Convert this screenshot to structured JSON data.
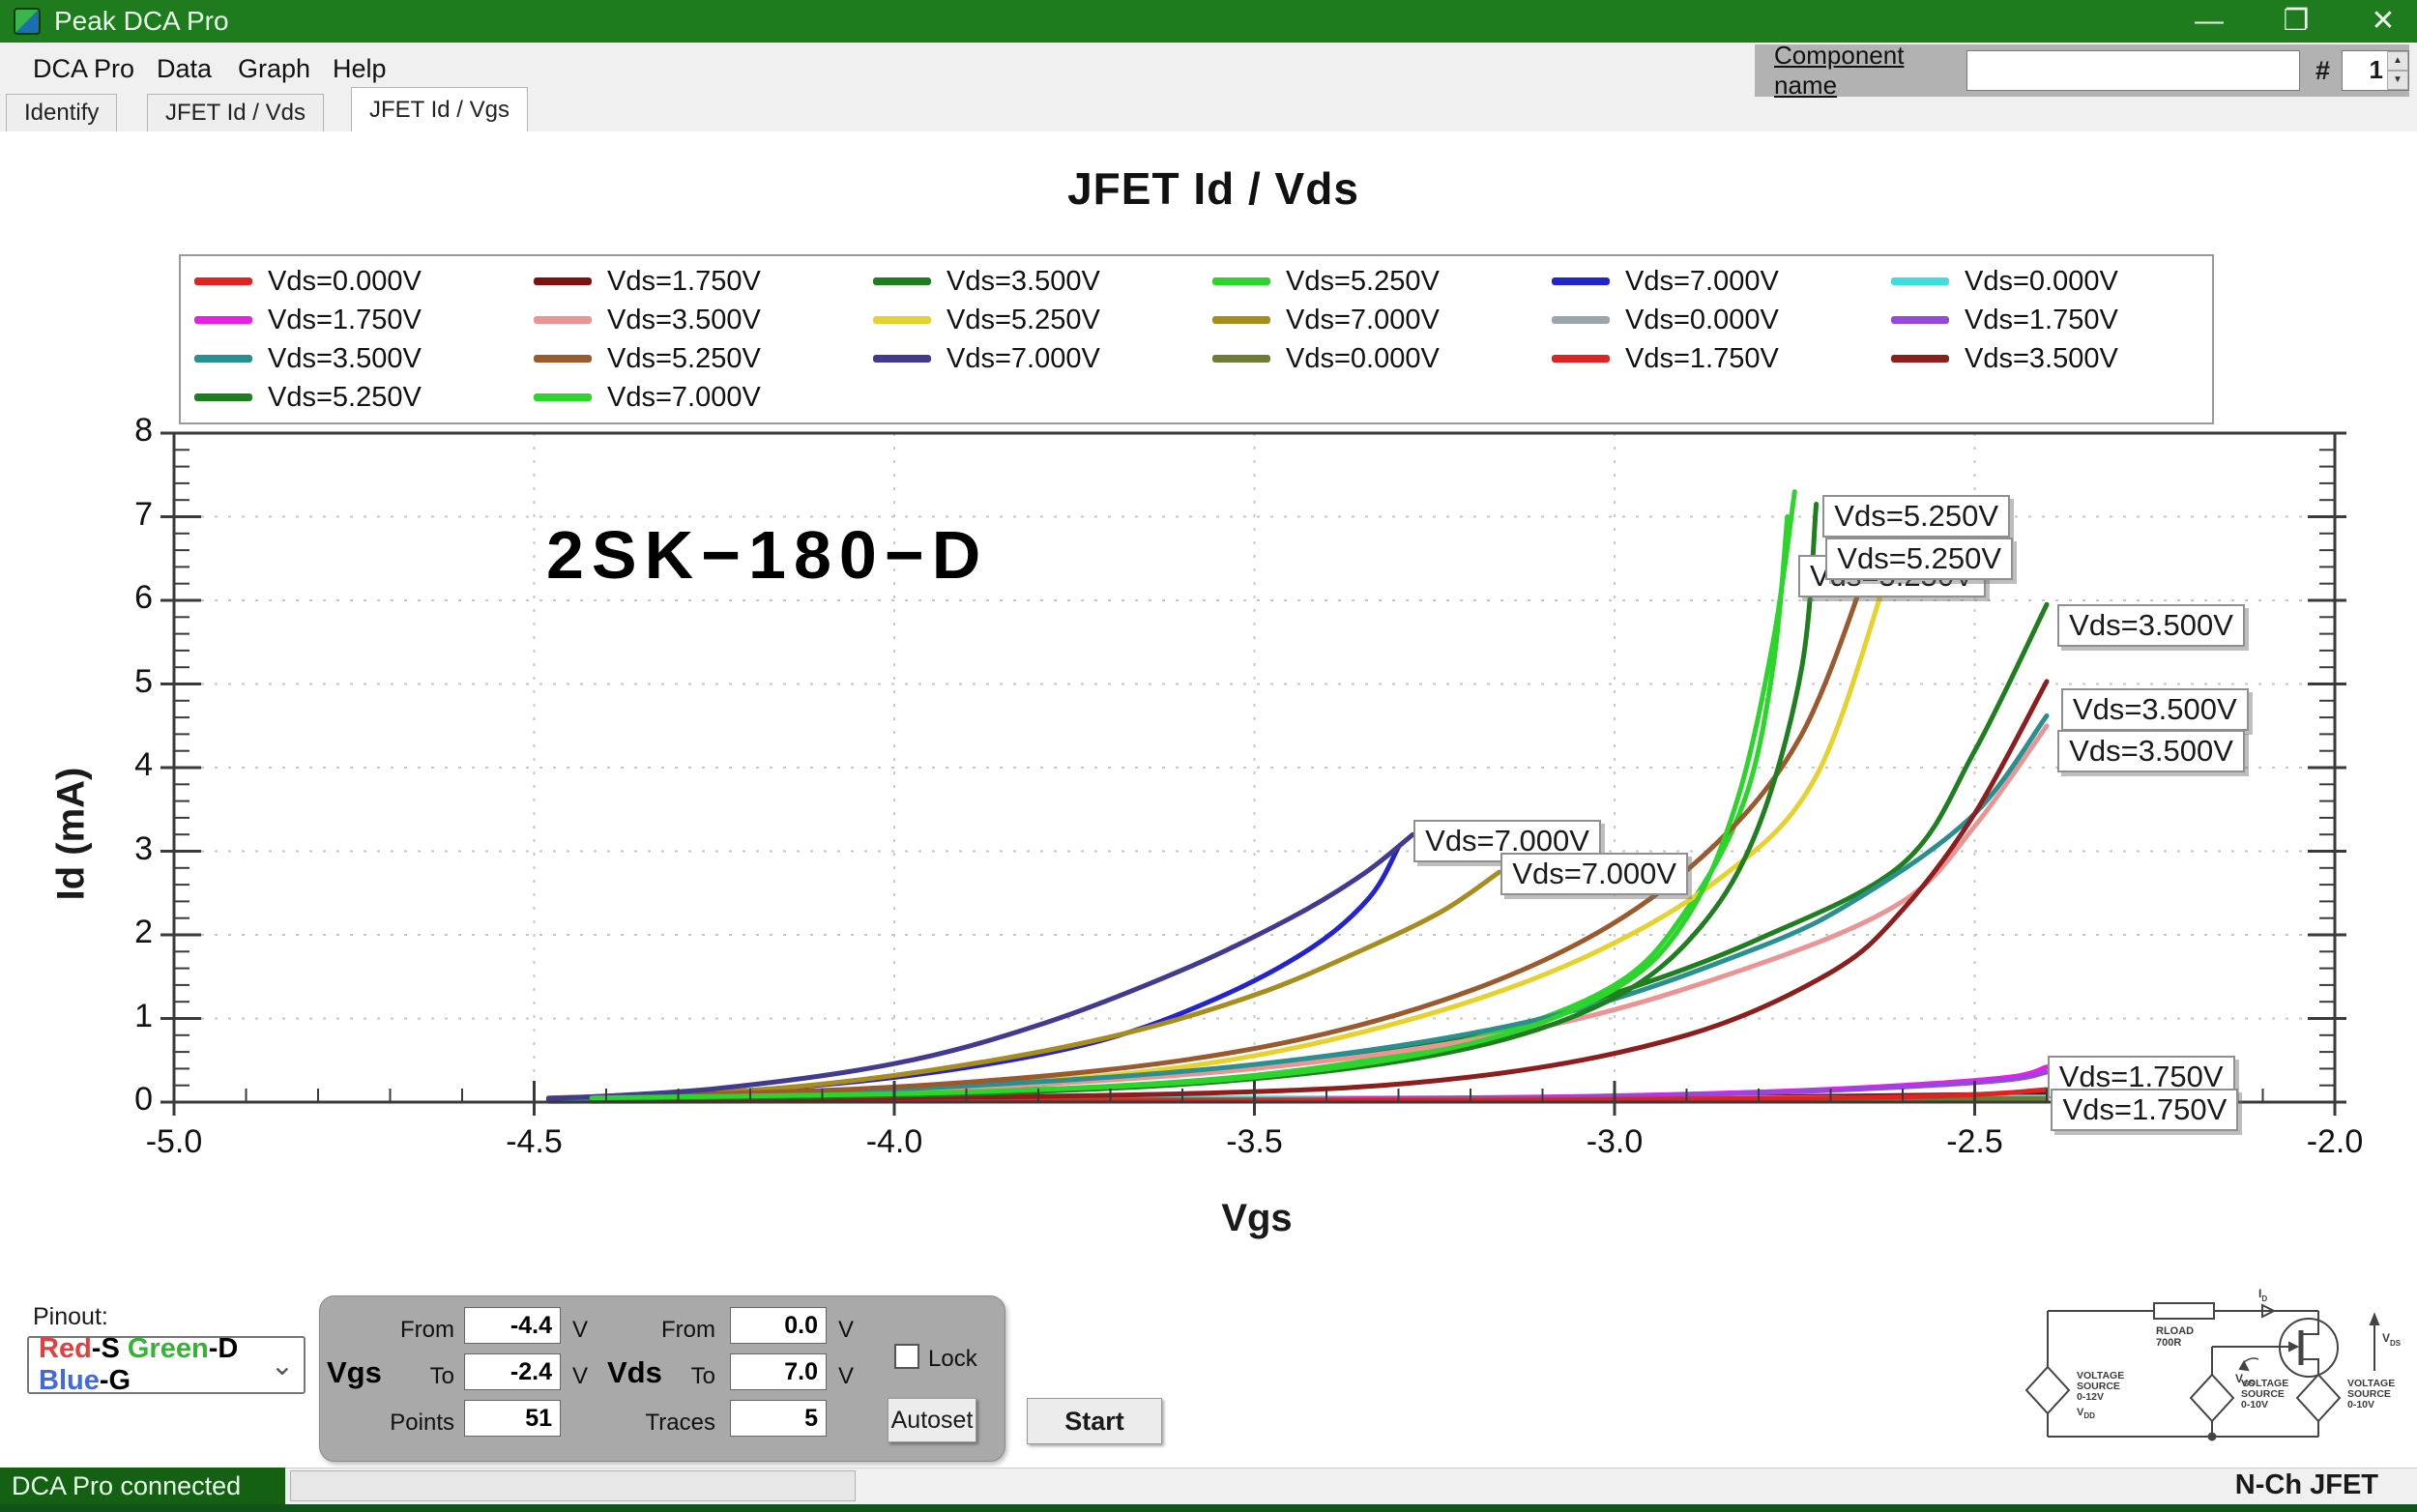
{
  "window": {
    "title": "Peak DCA Pro",
    "minimize": "—",
    "restore": "❐",
    "close": "✕"
  },
  "menu": {
    "items": [
      "DCA Pro",
      "Data",
      "Graph",
      "Help"
    ]
  },
  "tabs": {
    "items": [
      "Identify",
      "JFET Id / Vds",
      "JFET Id / Vgs"
    ],
    "active": "JFET Id / Vgs"
  },
  "component_bar": {
    "label": "Component name",
    "value": "",
    "hash_label": "#",
    "number": "1"
  },
  "chart_data": {
    "type": "line",
    "title": "JFET Id / Vds",
    "annotation": "2SK−180−D",
    "xlabel": "Vgs",
    "ylabel": "Id (mA)",
    "xlim": [
      -5.0,
      -2.0
    ],
    "ylim": [
      0,
      8
    ],
    "xticks": [
      -5.0,
      -4.5,
      -4.0,
      -3.5,
      -3.0,
      -2.5,
      -2.0
    ],
    "yticks": [
      0,
      1,
      2,
      3,
      4,
      5,
      6,
      7,
      8
    ],
    "grid": "dotted",
    "legend_position": "top",
    "legend_entries": [
      {
        "color": "#e02222",
        "label": "Vds=0.000V"
      },
      {
        "color": "#7d1212",
        "label": "Vds=1.750V"
      },
      {
        "color": "#1f7e1f",
        "label": "Vds=3.500V"
      },
      {
        "color": "#2cd42c",
        "label": "Vds=5.250V"
      },
      {
        "color": "#2424cc",
        "label": "Vds=7.000V"
      },
      {
        "color": "#3ddede",
        "label": "Vds=0.000V"
      },
      {
        "color": "#e81ee8",
        "label": "Vds=1.750V"
      },
      {
        "color": "#eb9494",
        "label": "Vds=3.500V"
      },
      {
        "color": "#e6d22e",
        "label": "Vds=5.250V"
      },
      {
        "color": "#a68d1e",
        "label": "Vds=7.000V"
      },
      {
        "color": "#9aa6ad",
        "label": "Vds=0.000V"
      },
      {
        "color": "#9747dd",
        "label": "Vds=1.750V"
      },
      {
        "color": "#2a8f8f",
        "label": "Vds=3.500V"
      },
      {
        "color": "#9a5a2d",
        "label": "Vds=5.250V"
      },
      {
        "color": "#423a8e",
        "label": "Vds=7.000V"
      },
      {
        "color": "#6d7c36",
        "label": "Vds=0.000V"
      },
      {
        "color": "#e02222",
        "label": "Vds=1.750V"
      },
      {
        "color": "#8c1e1e",
        "label": "Vds=3.500V"
      },
      {
        "color": "#1f7e1f",
        "label": "Vds=5.250V"
      },
      {
        "color": "#2cd42c",
        "label": "Vds=7.000V"
      }
    ],
    "series": [
      {
        "name": "run1 Vds=0.000V",
        "color": "#e02222",
        "points": [
          [
            -4.48,
            0.02
          ],
          [
            -4.0,
            0.02
          ],
          [
            -3.2,
            0.03
          ],
          [
            -2.4,
            0.03
          ]
        ]
      },
      {
        "name": "run1 Vds=1.750V",
        "color": "#7d1212",
        "points": [
          [
            -4.48,
            0.02
          ],
          [
            -3.4,
            0.04
          ],
          [
            -2.8,
            0.06
          ],
          [
            -2.4,
            0.1
          ]
        ]
      },
      {
        "name": "run1 Vds=3.500V",
        "color": "#1f7e1f",
        "points": [
          [
            -4.48,
            0.03
          ],
          [
            -4.0,
            0.12
          ],
          [
            -3.6,
            0.35
          ],
          [
            -3.2,
            0.8
          ],
          [
            -3.0,
            1.3
          ],
          [
            -2.8,
            1.95
          ],
          [
            -2.6,
            2.85
          ],
          [
            -2.5,
            4.2
          ],
          [
            -2.4,
            5.95
          ]
        ]
      },
      {
        "name": "run1 Vds=5.250V",
        "color": "#2cd42c",
        "points": [
          [
            -4.48,
            0.03
          ],
          [
            -3.9,
            0.12
          ],
          [
            -3.5,
            0.32
          ],
          [
            -3.2,
            0.75
          ],
          [
            -3.0,
            1.4
          ],
          [
            -2.9,
            2.3
          ],
          [
            -2.82,
            3.6
          ],
          [
            -2.78,
            5.2
          ],
          [
            -2.76,
            7.0
          ]
        ]
      },
      {
        "name": "run1 Vds=7.000V",
        "color": "#2424cc",
        "points": [
          [
            -4.48,
            0.04
          ],
          [
            -4.2,
            0.14
          ],
          [
            -3.95,
            0.35
          ],
          [
            -3.72,
            0.72
          ],
          [
            -3.55,
            1.25
          ],
          [
            -3.42,
            1.85
          ],
          [
            -3.34,
            2.45
          ],
          [
            -3.3,
            3.05
          ]
        ]
      },
      {
        "name": "run2 Vds=0.000V",
        "color": "#3ddede",
        "points": [
          [
            -4.48,
            0.05
          ],
          [
            -3.6,
            0.05
          ],
          [
            -2.8,
            0.05
          ],
          [
            -2.4,
            0.06
          ]
        ]
      },
      {
        "name": "run2 Vds=1.750V",
        "color": "#e81ee8",
        "points": [
          [
            -4.48,
            0.01
          ],
          [
            -3.6,
            0.02
          ],
          [
            -3.1,
            0.06
          ],
          [
            -2.8,
            0.12
          ],
          [
            -2.6,
            0.2
          ],
          [
            -2.45,
            0.3
          ],
          [
            -2.4,
            0.42
          ]
        ]
      },
      {
        "name": "run2 Vds=3.500V",
        "color": "#eb9494",
        "points": [
          [
            -4.48,
            0.03
          ],
          [
            -4.0,
            0.13
          ],
          [
            -3.5,
            0.4
          ],
          [
            -3.1,
            0.9
          ],
          [
            -2.8,
            1.65
          ],
          [
            -2.6,
            2.4
          ],
          [
            -2.5,
            3.3
          ],
          [
            -2.4,
            4.5
          ]
        ]
      },
      {
        "name": "run2 Vds=5.250V",
        "color": "#e6d22e",
        "points": [
          [
            -4.48,
            0.04
          ],
          [
            -4.0,
            0.15
          ],
          [
            -3.6,
            0.42
          ],
          [
            -3.3,
            0.95
          ],
          [
            -3.05,
            1.7
          ],
          [
            -2.85,
            2.7
          ],
          [
            -2.72,
            3.9
          ],
          [
            -2.62,
            6.35
          ]
        ]
      },
      {
        "name": "run2 Vds=7.000V",
        "color": "#a68d1e",
        "points": [
          [
            -4.48,
            0.04
          ],
          [
            -4.2,
            0.14
          ],
          [
            -3.95,
            0.38
          ],
          [
            -3.7,
            0.78
          ],
          [
            -3.5,
            1.28
          ],
          [
            -3.35,
            1.82
          ],
          [
            -3.24,
            2.28
          ],
          [
            -3.16,
            2.75
          ]
        ]
      },
      {
        "name": "run3 Vds=0.000V",
        "color": "#9aa6ad",
        "points": [
          [
            -4.48,
            0.03
          ],
          [
            -3.5,
            0.03
          ],
          [
            -2.4,
            0.04
          ]
        ]
      },
      {
        "name": "run3 Vds=1.750V",
        "color": "#9747dd",
        "points": [
          [
            -4.48,
            0.01
          ],
          [
            -3.6,
            0.02
          ],
          [
            -3.1,
            0.05
          ],
          [
            -2.8,
            0.11
          ],
          [
            -2.6,
            0.18
          ],
          [
            -2.45,
            0.27
          ],
          [
            -2.4,
            0.36
          ]
        ]
      },
      {
        "name": "run3 Vds=3.500V",
        "color": "#2a8f8f",
        "points": [
          [
            -4.48,
            0.03
          ],
          [
            -4.0,
            0.15
          ],
          [
            -3.5,
            0.45
          ],
          [
            -3.1,
            1.0
          ],
          [
            -2.8,
            1.85
          ],
          [
            -2.65,
            2.5
          ],
          [
            -2.5,
            3.45
          ],
          [
            -2.4,
            4.62
          ]
        ]
      },
      {
        "name": "run3 Vds=5.250V",
        "color": "#9a5a2d",
        "points": [
          [
            -4.48,
            0.05
          ],
          [
            -4.0,
            0.18
          ],
          [
            -3.6,
            0.5
          ],
          [
            -3.3,
            1.05
          ],
          [
            -3.05,
            1.9
          ],
          [
            -2.87,
            3.0
          ],
          [
            -2.74,
            4.4
          ],
          [
            -2.64,
            6.6
          ]
        ]
      },
      {
        "name": "run3 Vds=7.000V",
        "color": "#423a8e",
        "points": [
          [
            -4.48,
            0.04
          ],
          [
            -4.25,
            0.16
          ],
          [
            -4.0,
            0.46
          ],
          [
            -3.8,
            0.92
          ],
          [
            -3.6,
            1.58
          ],
          [
            -3.45,
            2.2
          ],
          [
            -3.35,
            2.72
          ],
          [
            -3.28,
            3.2
          ]
        ]
      },
      {
        "name": "run4 Vds=0.000V",
        "color": "#6d7c36",
        "points": [
          [
            -4.42,
            0.02
          ],
          [
            -3.4,
            0.03
          ],
          [
            -2.4,
            0.04
          ]
        ]
      },
      {
        "name": "run4 Vds=1.750V",
        "color": "#e02222",
        "points": [
          [
            -4.42,
            0.01
          ],
          [
            -3.2,
            0.02
          ],
          [
            -2.7,
            0.05
          ],
          [
            -2.5,
            0.09
          ],
          [
            -2.4,
            0.15
          ]
        ]
      },
      {
        "name": "run4 Vds=3.500V",
        "color": "#8c1e1e",
        "points": [
          [
            -4.42,
            0.02
          ],
          [
            -3.6,
            0.1
          ],
          [
            -3.2,
            0.3
          ],
          [
            -2.9,
            0.8
          ],
          [
            -2.7,
            1.55
          ],
          [
            -2.6,
            2.3
          ],
          [
            -2.5,
            3.45
          ],
          [
            -2.4,
            5.03
          ]
        ]
      },
      {
        "name": "run4 Vds=5.250V",
        "color": "#1f7e1f",
        "points": [
          [
            -4.42,
            0.04
          ],
          [
            -3.9,
            0.1
          ],
          [
            -3.5,
            0.28
          ],
          [
            -3.2,
            0.65
          ],
          [
            -3.0,
            1.25
          ],
          [
            -2.88,
            2.1
          ],
          [
            -2.8,
            3.3
          ],
          [
            -2.74,
            5.2
          ],
          [
            -2.72,
            7.15
          ]
        ]
      },
      {
        "name": "run4 Vds=7.000V",
        "color": "#2cd42c",
        "points": [
          [
            -4.42,
            0.05
          ],
          [
            -3.9,
            0.12
          ],
          [
            -3.5,
            0.3
          ],
          [
            -3.2,
            0.7
          ],
          [
            -3.0,
            1.35
          ],
          [
            -2.9,
            2.2
          ],
          [
            -2.83,
            3.6
          ],
          [
            -2.78,
            5.5
          ],
          [
            -2.75,
            7.3
          ]
        ]
      }
    ],
    "trace_labels": [
      {
        "text": "Vds=5.250V",
        "x": -2.745,
        "y": 6.54
      },
      {
        "text": "Vds=5.250V",
        "x": -2.711,
        "y": 7.26
      },
      {
        "text": "Vds=5.250V",
        "x": -2.707,
        "y": 6.75
      },
      {
        "text": "Vds=7.000V",
        "x": -3.279,
        "y": 3.38
      },
      {
        "text": "Vds=7.000V",
        "x": -3.158,
        "y": 2.98
      },
      {
        "text": "Vds=3.500V",
        "x": -2.385,
        "y": 5.95
      },
      {
        "text": "Vds=3.500V",
        "x": -2.38,
        "y": 4.95
      },
      {
        "text": "Vds=3.500V",
        "x": -2.385,
        "y": 4.45
      },
      {
        "text": "Vds=1.750V",
        "x": -2.399,
        "y": 0.55
      },
      {
        "text": "Vds=1.750V",
        "x": -2.394,
        "y": 0.16
      }
    ]
  },
  "pinout": {
    "label": "Pinout:",
    "value_parts": [
      {
        "text": "Red",
        "color": "#e04040"
      },
      {
        "text": "-S ",
        "color": "#000000"
      },
      {
        "text": "Green",
        "color": "#35b335"
      },
      {
        "text": "-D ",
        "color": "#000000"
      },
      {
        "text": "Blue",
        "color": "#4169e1"
      },
      {
        "text": "-G",
        "color": "#000000"
      }
    ],
    "chevron": "⌄"
  },
  "controls": {
    "vgs_label": "Vgs",
    "vds_label": "Vds",
    "from_label": "From",
    "to_label": "To",
    "points_label": "Points",
    "traces_label": "Traces",
    "unit": "V",
    "vgs_from": "-4.4",
    "vgs_to": "-2.4",
    "points": "51",
    "vds_from": "0.0",
    "vds_to": "7.0",
    "traces": "5",
    "lock_label": "Lock",
    "autoset_label": "Autoset",
    "start_label": "Start"
  },
  "circuit": {
    "rload_name": "RLOAD",
    "rload_value": "700R",
    "id_main": "I",
    "id_sub": "D",
    "vds_main": "V",
    "vds_sub": "DS",
    "vgs_main": "V",
    "vgs_sub": "GS",
    "source1": [
      "VOLTAGE",
      "SOURCE",
      "0-12V"
    ],
    "source1_name": "V",
    "source1_name_sub": "DD",
    "source2": [
      "VOLTAGE",
      "SOURCE",
      "0-10V"
    ],
    "source3": [
      "VOLTAGE",
      "SOURCE",
      "0-10V"
    ]
  },
  "status": {
    "connected": "DCA Pro connected",
    "device": "N-Ch JFET"
  }
}
